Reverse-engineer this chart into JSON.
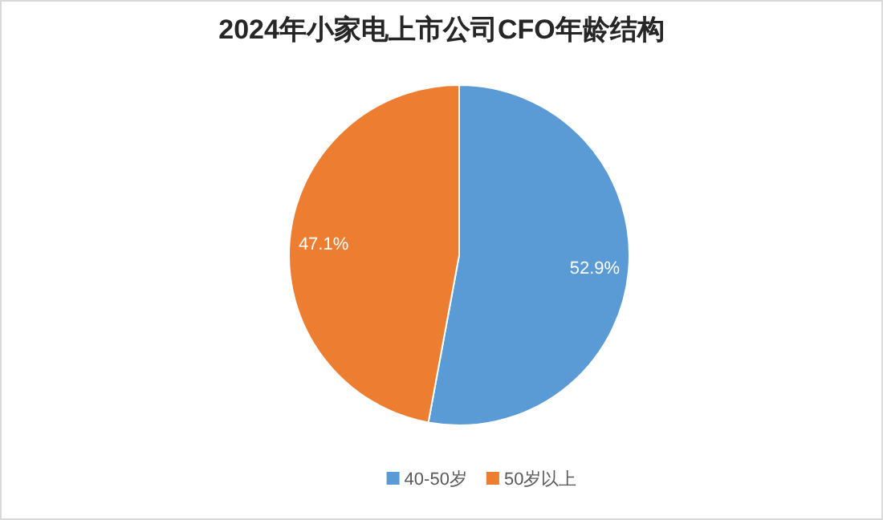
{
  "chart_data": {
    "type": "pie",
    "title": "2024年小家电上市公司CFO年龄结构",
    "categories": [
      "40-50岁",
      "50岁以上"
    ],
    "values": [
      52.9,
      47.1
    ],
    "colors": [
      "#5b9bd5",
      "#ed7d31"
    ],
    "value_labels": [
      "52.9%",
      "47.1%"
    ],
    "legend": "bottom"
  }
}
